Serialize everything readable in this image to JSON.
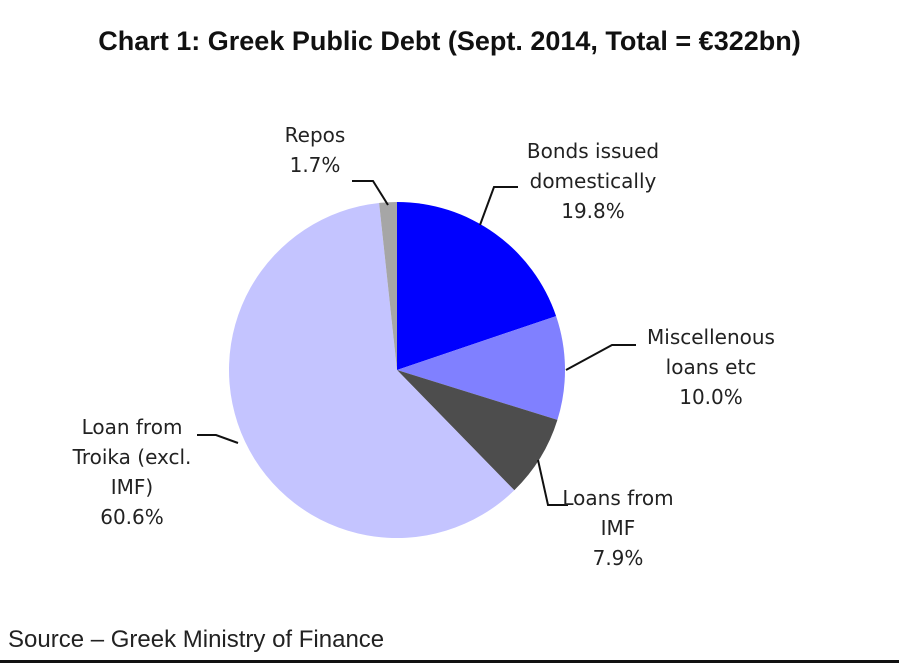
{
  "chart_data": {
    "type": "pie",
    "title": "Chart 1: Greek Public Debt (Sept. 2014, Total = €322bn)",
    "source": "Source – Greek Ministry of Finance",
    "slices": [
      {
        "label": [
          "Bonds issued",
          "domestically"
        ],
        "pct_label": "19.8%",
        "value": 19.8,
        "color": "#0000ff"
      },
      {
        "label": [
          "Miscellenous",
          "loans etc"
        ],
        "pct_label": "10.0%",
        "value": 10.0,
        "color": "#8080ff"
      },
      {
        "label": [
          "Loans from",
          "IMF"
        ],
        "pct_label": "7.9%",
        "value": 7.9,
        "color": "#4d4d4d"
      },
      {
        "label": [
          "Loan from",
          "Troika (excl.",
          "IMF)"
        ],
        "pct_label": "60.6%",
        "value": 60.6,
        "color": "#c4c4ff"
      },
      {
        "label": [
          "Repos"
        ],
        "pct_label": "1.7%",
        "value": 1.7,
        "color": "#a6a6a6"
      }
    ]
  }
}
